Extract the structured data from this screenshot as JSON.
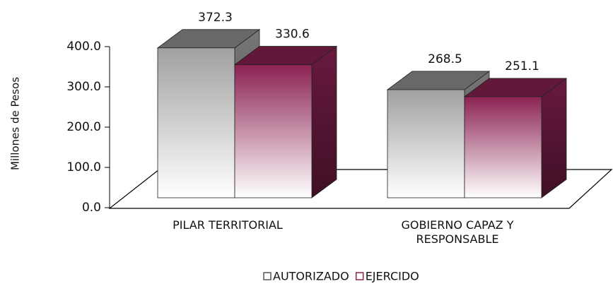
{
  "chart_data": {
    "type": "bar3d",
    "y_label": "Millones de Pesos",
    "categories": [
      "PILAR TERRITORIAL",
      "GOBIERNO CAPAZ Y RESPONSABLE"
    ],
    "series": [
      {
        "name": "AUTORIZADO",
        "color": "#a0a0a0",
        "values": [
          372.3,
          268.5
        ]
      },
      {
        "name": "EJERCIDO",
        "color": "#8b2252",
        "values": [
          330.6,
          251.1
        ]
      }
    ],
    "ylim": [
      0,
      400
    ],
    "yticks": [
      {
        "value": 0,
        "label": "0.0"
      },
      {
        "value": 100,
        "label": "100.0"
      },
      {
        "value": 200,
        "label": "200.0"
      },
      {
        "value": 300,
        "label": "300.0"
      },
      {
        "value": 400,
        "label": "400.0"
      }
    ],
    "legend": "bottom"
  }
}
